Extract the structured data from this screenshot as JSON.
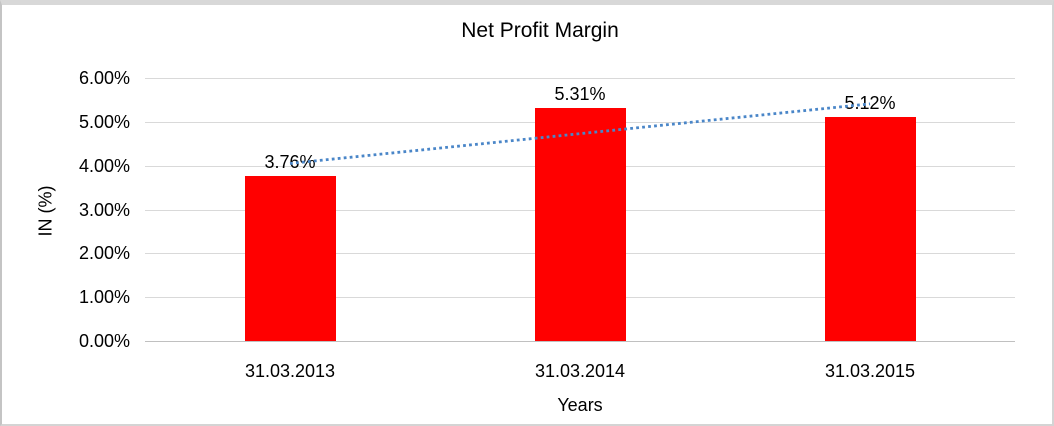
{
  "chart_data": {
    "type": "bar",
    "title": "Net Profit Margin",
    "xlabel": "Years",
    "ylabel": "IN (%)",
    "categories": [
      "31.03.2013",
      "31.03.2014",
      "31.03.2015"
    ],
    "values": [
      3.76,
      5.31,
      5.12
    ],
    "data_labels": [
      "3.76%",
      "5.31%",
      "5.12%"
    ],
    "ylim": [
      0,
      6
    ],
    "ytick_step": 1,
    "ytick_labels": [
      "0.00%",
      "1.00%",
      "2.00%",
      "3.00%",
      "4.00%",
      "5.00%",
      "6.00%"
    ],
    "grid": true,
    "legend": "none",
    "bar_color": "#ff0000",
    "gridline_color": "#d9d9d9",
    "axis_line_color": "#c0c0c0",
    "trendline": {
      "type": "linear",
      "style": "dotted",
      "color": "#4a86c8"
    }
  }
}
